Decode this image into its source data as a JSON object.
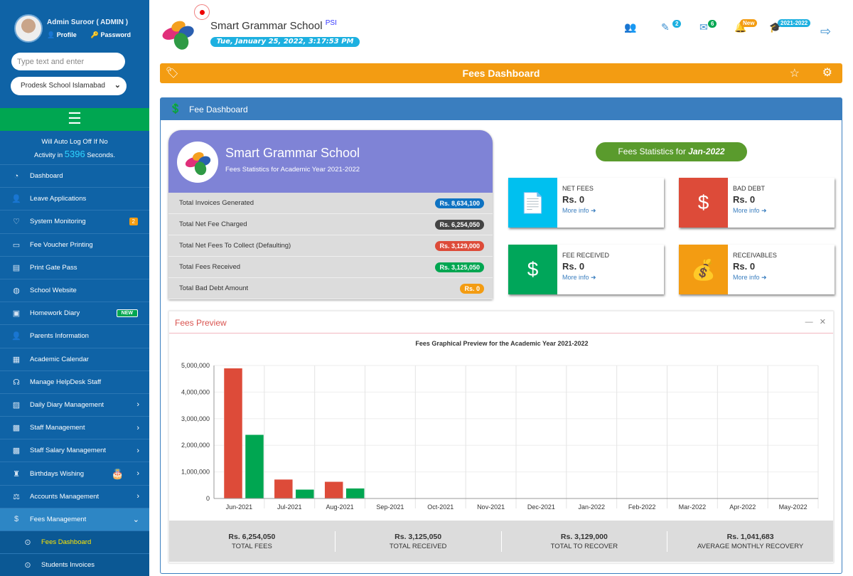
{
  "user": {
    "name": "Admin Suroor ( ADMIN )",
    "profile": "Profile",
    "password": "Password"
  },
  "sidebar": {
    "search_placeholder": "Type text and enter",
    "campus": "Prodesk School Islamabad",
    "autolog_pre": "Will Auto Log Off If No",
    "autolog_mid": "Activity in",
    "autolog_seconds": "5396",
    "autolog_post": "Seconds.",
    "items": [
      {
        "label": "Dashboard",
        "icon": "dashboard-icon",
        "glyph": "◔"
      },
      {
        "label": "Leave Applications",
        "icon": "user-clock-icon",
        "glyph": "👤"
      },
      {
        "label": "System Monitoring",
        "icon": "heartbeat-icon",
        "glyph": "♡",
        "badge": "2"
      },
      {
        "label": "Fee Voucher Printing",
        "icon": "voucher-icon",
        "glyph": "▭"
      },
      {
        "label": "Print Gate Pass",
        "icon": "id-card-icon",
        "glyph": "▤"
      },
      {
        "label": "School Website",
        "icon": "globe-icon",
        "glyph": "◍"
      },
      {
        "label": "Homework Diary",
        "icon": "book-icon",
        "glyph": "▣",
        "new": "NEW"
      },
      {
        "label": "Parents Information",
        "icon": "user-icon",
        "glyph": "👤"
      },
      {
        "label": "Academic Calendar",
        "icon": "calendar-icon",
        "glyph": "▦"
      },
      {
        "label": "Manage HelpDesk Staff",
        "icon": "headset-icon",
        "glyph": "☊"
      },
      {
        "label": "Daily Diary Management",
        "icon": "diary-icon",
        "glyph": "▨",
        "arrow": "›"
      },
      {
        "label": "Staff Management",
        "icon": "staff-icon",
        "glyph": "▩",
        "arrow": "›"
      },
      {
        "label": "Staff Salary Management",
        "icon": "salary-icon",
        "glyph": "▩",
        "arrow": "›"
      },
      {
        "label": "Birthdays Wishing",
        "icon": "birthday-icon",
        "glyph": "♜",
        "arrow": "›"
      },
      {
        "label": "Accounts Management",
        "icon": "accounts-icon",
        "glyph": "⚖",
        "arrow": "›"
      },
      {
        "label": "Fees Management",
        "icon": "money-icon",
        "glyph": "$",
        "arrow": "⌄"
      }
    ],
    "subitems": [
      {
        "label": "Fees Dashboard"
      },
      {
        "label": "Students Invoices"
      }
    ]
  },
  "header": {
    "school": "Smart Grammar School",
    "tag": "PSI",
    "datetime": "Tue, January 25, 2022, 3:17:53 PM",
    "badges": {
      "tasks": "2",
      "messages": "6",
      "notifications": "New",
      "session": "2021-2022"
    }
  },
  "page": {
    "title": "Fees Dashboard",
    "panel_title": "Fee Dashboard"
  },
  "card": {
    "school": "Smart Grammar School",
    "subtitle": "Fees Statistics for Academic Year 2021-2022",
    "rows": [
      {
        "label": "Total Invoices Generated",
        "value": "Rs. 8,634,100",
        "color": "#0f73c2"
      },
      {
        "label": "Total Net Fee Charged",
        "value": "Rs. 6,254,050",
        "color": "#444444"
      },
      {
        "label": "Total Net Fees To Collect (Defaulting)",
        "value": "Rs. 3,129,000",
        "color": "#dd4b39"
      },
      {
        "label": "Total Fees Received",
        "value": "Rs. 3,125,050",
        "color": "#00a651"
      },
      {
        "label": "Total Bad Debt Amount",
        "value": "Rs. 0",
        "color": "#f39c12"
      }
    ]
  },
  "stats": {
    "title_pre": "Fees Statistics for",
    "title_month": "Jan-2022",
    "boxes": [
      {
        "label": "NET FEES",
        "value": "Rs. 0",
        "more": "More info",
        "color": "#00c0ef",
        "icon": "invoice-dollar-icon"
      },
      {
        "label": "BAD DEBT",
        "value": "Rs. 0",
        "more": "More info",
        "color": "#dd4b39",
        "icon": "dollar-inbox-icon"
      },
      {
        "label": "FEE RECEIVED",
        "value": "Rs. 0",
        "more": "More info",
        "color": "#00a65a",
        "icon": "hand-dollar-icon"
      },
      {
        "label": "RECEIVABLES",
        "value": "Rs. 0",
        "more": "More info",
        "color": "#f39c12",
        "icon": "money-bag-icon"
      }
    ]
  },
  "preview": {
    "title": "Fees Preview"
  },
  "chart_data": {
    "type": "bar",
    "title": "Fees Graphical Preview for the Academic Year 2021-2022",
    "categories": [
      "Jun-2021",
      "Jul-2021",
      "Aug-2021",
      "Sep-2021",
      "Oct-2021",
      "Nov-2021",
      "Dec-2021",
      "Jan-2022",
      "Feb-2022",
      "Mar-2022",
      "Apr-2022",
      "May-2022"
    ],
    "series": [
      {
        "values": [
          4900000,
          720000,
          634050,
          0,
          0,
          0,
          0,
          0,
          0,
          0,
          0,
          0
        ],
        "color": "#dd4b39"
      },
      {
        "values": [
          2400000,
          340000,
          385050,
          0,
          0,
          0,
          0,
          0,
          0,
          0,
          0,
          0
        ],
        "color": "#00a651"
      }
    ],
    "yticks": [
      "0",
      "1,000,000",
      "2,000,000",
      "3,000,000",
      "4,000,000",
      "5,000,000"
    ],
    "ylim": [
      0,
      5000000
    ],
    "grid": true
  },
  "summary": [
    {
      "value": "Rs. 6,254,050",
      "label": "TOTAL FEES"
    },
    {
      "value": "Rs. 3,125,050",
      "label": "TOTAL RECEIVED"
    },
    {
      "value": "Rs. 3,129,000",
      "label": "TOTAL TO RECOVER"
    },
    {
      "value": "Rs. 1,041,683",
      "label": "AVERAGE MONTHLY RECOVERY"
    }
  ]
}
